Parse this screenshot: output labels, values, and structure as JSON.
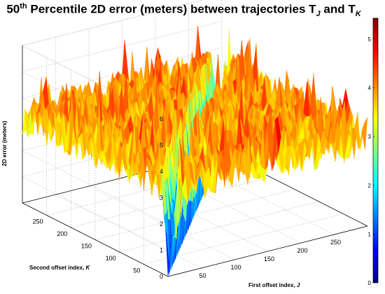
{
  "title": {
    "prefix": "50",
    "sup": "th",
    "middle": " Percentile 2D error (meters) between trajectories T",
    "sub1": "J",
    "and": " and T",
    "sub2": "K"
  },
  "chart_data": {
    "type": "surface",
    "title": "50th Percentile 2D error (meters) between trajectories T_J and T_K",
    "zlabel": "2D error (meters)",
    "xlabel": "First offset index, J",
    "ylabel": "Second offset index, K",
    "xlim": [
      0,
      300
    ],
    "ylim": [
      0,
      300
    ],
    "zlim": [
      0,
      6
    ],
    "x_ticks": [
      "50",
      "100",
      "150",
      "200",
      "250"
    ],
    "y_ticks": [
      "50",
      "100",
      "150",
      "200",
      "250"
    ],
    "z_ticks": [
      "0",
      "1",
      "2",
      "3",
      "4",
      "5",
      "6"
    ],
    "colorbar": {
      "range": [
        0,
        5
      ],
      "ticks": [
        "0",
        "1",
        "2",
        "3",
        "4",
        "5"
      ],
      "colormap": [
        "#00007f",
        "#0000ff",
        "#0080ff",
        "#00ffff",
        "#80ff80",
        "#ffff00",
        "#ff8000",
        "#ff0000",
        "#7f0000"
      ]
    },
    "surface_summary": {
      "diagonal_J_equals_K_error": 0,
      "typical_error_range": [
        2.5,
        5
      ],
      "peak_error": 6
    },
    "grid": true
  }
}
